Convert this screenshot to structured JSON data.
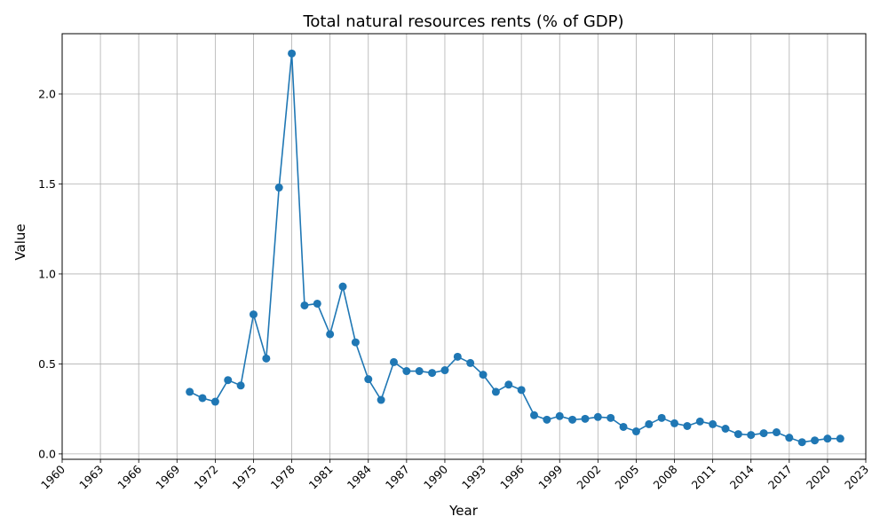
{
  "chart_data": {
    "type": "line",
    "title": "Total natural resources rents (% of GDP)",
    "xlabel": "Year",
    "ylabel": "Value",
    "xlim": [
      1960,
      2023
    ],
    "ylim": [
      -0.03,
      2.335
    ],
    "xticks": [
      1960,
      1963,
      1966,
      1969,
      1972,
      1975,
      1978,
      1981,
      1984,
      1987,
      1990,
      1993,
      1996,
      1999,
      2002,
      2005,
      2008,
      2011,
      2014,
      2017,
      2020,
      2023
    ],
    "yticks": [
      0.0,
      0.5,
      1.0,
      1.5,
      2.0
    ],
    "ytick_labels": [
      "0.0",
      "0.5",
      "1.0",
      "1.5",
      "2.0"
    ],
    "grid": true,
    "legend": "none",
    "color": "#1f77b4",
    "marker": "circle",
    "series": [
      {
        "x": [
          1970,
          1971,
          1972,
          1973,
          1974,
          1975,
          1976,
          1977,
          1978,
          1979,
          1980,
          1981,
          1982,
          1983,
          1984,
          1985,
          1986,
          1987,
          1988,
          1989,
          1990,
          1991,
          1992,
          1993,
          1994,
          1995,
          1996,
          1997,
          1998,
          1999,
          2000,
          2001,
          2002,
          2003,
          2004,
          2005,
          2006,
          2007,
          2008,
          2009,
          2010,
          2011,
          2012,
          2013,
          2014,
          2015,
          2016,
          2017,
          2018,
          2019,
          2020,
          2021
        ],
        "values": [
          0.345,
          0.31,
          0.29,
          0.41,
          0.38,
          0.775,
          0.53,
          1.48,
          2.225,
          0.825,
          0.835,
          0.665,
          0.93,
          0.62,
          0.415,
          0.3,
          0.51,
          0.46,
          0.46,
          0.45,
          0.465,
          0.54,
          0.505,
          0.44,
          0.345,
          0.385,
          0.355,
          0.215,
          0.19,
          0.21,
          0.19,
          0.195,
          0.205,
          0.2,
          0.15,
          0.125,
          0.165,
          0.2,
          0.17,
          0.155,
          0.18,
          0.165,
          0.14,
          0.11,
          0.105,
          0.115,
          0.12,
          0.09,
          0.065,
          0.075,
          0.085,
          0.085
        ]
      }
    ]
  }
}
